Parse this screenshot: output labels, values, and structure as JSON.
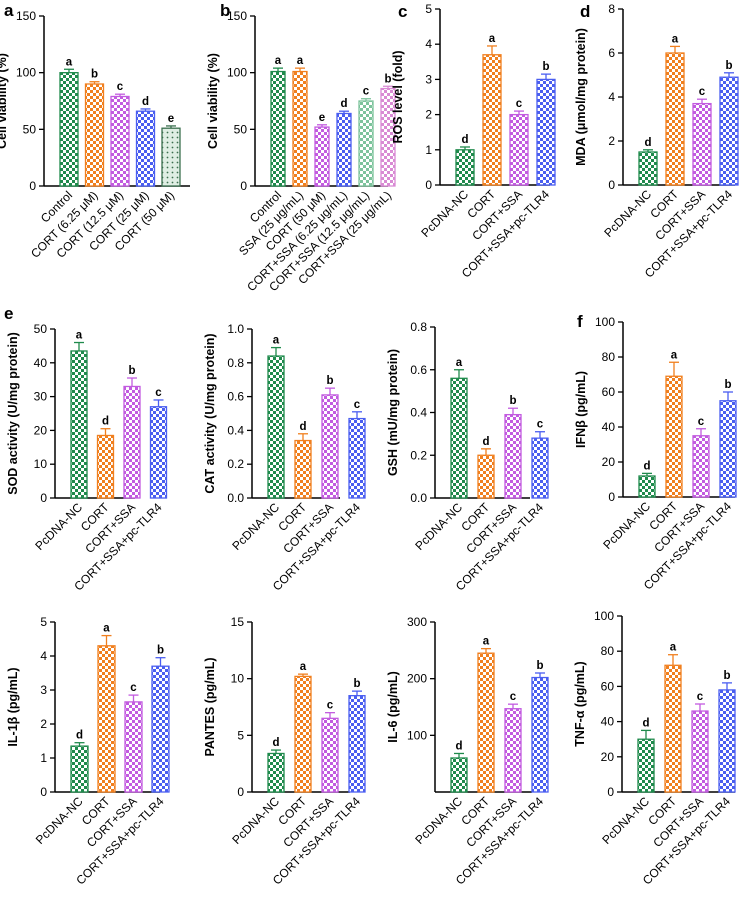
{
  "colors": {
    "green": "#1f8a4c",
    "orange": "#f07f1e",
    "purple": "#c25be0",
    "blue": "#4a5ef0",
    "lightgreen": "#7dc39c",
    "pink": "#d98ad4",
    "darkgreen": "#3b6f4f"
  },
  "chart_data": [
    {
      "id": "a",
      "panel_label": "a",
      "type": "bar",
      "ylabel": "Cell viability (%)",
      "ylim": [
        0,
        150
      ],
      "yticks": [
        0,
        50,
        100,
        150
      ],
      "categories": [
        "Control",
        "CORT (6.25 μM)",
        "CORT (12.5 μM)",
        "CORT (25 μM)",
        "CORT (50 μM)"
      ],
      "values": [
        100,
        90,
        79,
        66,
        51
      ],
      "errors": [
        3,
        2,
        2,
        2,
        2
      ],
      "letters": [
        "a",
        "b",
        "c",
        "d",
        "e"
      ],
      "bar_colors": [
        "green",
        "orange",
        "purple",
        "blue",
        "darkgreen"
      ],
      "patterns": [
        "check",
        "check",
        "check",
        "check",
        "dots"
      ]
    },
    {
      "id": "b",
      "panel_label": "b",
      "type": "bar",
      "ylabel": "Cell viability (%)",
      "ylim": [
        0,
        150
      ],
      "yticks": [
        0,
        50,
        100,
        150
      ],
      "categories": [
        "Control",
        "SSA (25 μg/mL)",
        "CORT (50 μM)",
        "CORT+SSA (6.25 μg/mL)",
        "CORT+SSA (12.5 μg/mL)",
        "CORT+SSA (25 μg/mL)"
      ],
      "values": [
        101,
        101,
        52,
        64,
        75,
        86
      ],
      "errors": [
        3,
        3,
        2,
        2,
        2,
        2
      ],
      "letters": [
        "a",
        "a",
        "e",
        "d",
        "c",
        "b"
      ],
      "bar_colors": [
        "green",
        "orange",
        "purple",
        "blue",
        "lightgreen",
        "pink"
      ],
      "patterns": [
        "check",
        "check",
        "check",
        "check",
        "check",
        "check"
      ]
    },
    {
      "id": "c",
      "panel_label": "c",
      "type": "bar",
      "ylabel": "ROS level (fold)",
      "ylim": [
        0,
        5
      ],
      "yticks": [
        0,
        1,
        2,
        3,
        4,
        5
      ],
      "categories": [
        "PcDNA-NC",
        "CORT",
        "CORT+SSA",
        "CORT+SSA+pc-TLR4"
      ],
      "values": [
        1.0,
        3.7,
        2.0,
        3.0
      ],
      "errors": [
        0.08,
        0.25,
        0.1,
        0.15
      ],
      "letters": [
        "d",
        "a",
        "c",
        "b"
      ],
      "bar_colors": [
        "green",
        "orange",
        "purple",
        "blue"
      ],
      "patterns": [
        "check",
        "check",
        "check",
        "check"
      ]
    },
    {
      "id": "d",
      "panel_label": "d",
      "type": "bar",
      "ylabel": "MDA (μmol/mg protein)",
      "ylim": [
        0,
        8
      ],
      "yticks": [
        0,
        2,
        4,
        6,
        8
      ],
      "categories": [
        "PcDNA-NC",
        "CORT",
        "CORT+SSA",
        "CORT+SSA+pc-TLR4"
      ],
      "values": [
        1.5,
        6.0,
        3.7,
        4.9
      ],
      "errors": [
        0.1,
        0.3,
        0.2,
        0.2
      ],
      "letters": [
        "d",
        "a",
        "c",
        "b"
      ],
      "bar_colors": [
        "green",
        "orange",
        "purple",
        "blue"
      ],
      "patterns": [
        "check",
        "check",
        "check",
        "check"
      ]
    },
    {
      "id": "e_sod",
      "panel_label": "e",
      "type": "bar",
      "ylabel": "SOD activity (U/mg protein)",
      "ylim": [
        0,
        50
      ],
      "yticks": [
        0,
        10,
        20,
        30,
        40,
        50
      ],
      "categories": [
        "PcDNA-NC",
        "CORT",
        "CORT+SSA",
        "CORT+SSA+pc-TLR4"
      ],
      "values": [
        43.5,
        18.5,
        33,
        27
      ],
      "errors": [
        2.5,
        2,
        2.5,
        2
      ],
      "letters": [
        "a",
        "d",
        "b",
        "c"
      ],
      "bar_colors": [
        "green",
        "orange",
        "purple",
        "blue"
      ],
      "patterns": [
        "check",
        "check",
        "check",
        "check"
      ]
    },
    {
      "id": "e_cat",
      "panel_label": "",
      "type": "bar",
      "ylabel": "CAT activity (U/mg protein)",
      "ylim": [
        0,
        1.0
      ],
      "yticks": [
        0.0,
        0.2,
        0.4,
        0.6,
        0.8,
        1.0
      ],
      "categories": [
        "PcDNA-NC",
        "CORT",
        "CORT+SSA",
        "CORT+SSA+pc-TLR4"
      ],
      "values": [
        0.84,
        0.34,
        0.61,
        0.47
      ],
      "errors": [
        0.05,
        0.04,
        0.04,
        0.04
      ],
      "letters": [
        "a",
        "d",
        "b",
        "c"
      ],
      "bar_colors": [
        "green",
        "orange",
        "purple",
        "blue"
      ],
      "patterns": [
        "check",
        "check",
        "check",
        "check"
      ]
    },
    {
      "id": "e_gsh",
      "panel_label": "",
      "type": "bar",
      "ylabel": "GSH (mU/mg protein)",
      "ylim": [
        0,
        0.8
      ],
      "yticks": [
        0.0,
        0.2,
        0.4,
        0.6,
        0.8
      ],
      "categories": [
        "PcDNA-NC",
        "CORT",
        "CORT+SSA",
        "CORT+SSA+pc-TLR4"
      ],
      "values": [
        0.56,
        0.2,
        0.39,
        0.28
      ],
      "errors": [
        0.04,
        0.03,
        0.03,
        0.03
      ],
      "letters": [
        "a",
        "d",
        "b",
        "c"
      ],
      "bar_colors": [
        "green",
        "orange",
        "purple",
        "blue"
      ],
      "patterns": [
        "check",
        "check",
        "check",
        "check"
      ]
    },
    {
      "id": "f_ifn",
      "panel_label": "f",
      "type": "bar",
      "ylabel": "IFNβ (pg/mL)",
      "ylim": [
        0,
        100
      ],
      "yticks": [
        0,
        20,
        40,
        60,
        80,
        100
      ],
      "categories": [
        "PcDNA-NC",
        "CORT",
        "CORT+SSA",
        "CORT+SSA+pc-TLR4"
      ],
      "values": [
        12,
        69,
        35,
        55
      ],
      "errors": [
        1.5,
        8,
        4,
        5
      ],
      "letters": [
        "d",
        "a",
        "c",
        "b"
      ],
      "bar_colors": [
        "green",
        "orange",
        "purple",
        "blue"
      ],
      "patterns": [
        "check",
        "check",
        "check",
        "check"
      ]
    },
    {
      "id": "g_il1",
      "panel_label": "",
      "type": "bar",
      "ylabel": "IL-1β (pg/mL)",
      "ylim": [
        0,
        5
      ],
      "yticks": [
        0,
        1,
        2,
        3,
        4,
        5
      ],
      "categories": [
        "PcDNA-NC",
        "CORT",
        "CORT+SSA",
        "CORT+SSA+pc-TLR4"
      ],
      "values": [
        1.35,
        4.3,
        2.65,
        3.7
      ],
      "errors": [
        0.1,
        0.3,
        0.2,
        0.25
      ],
      "letters": [
        "d",
        "a",
        "c",
        "b"
      ],
      "bar_colors": [
        "green",
        "orange",
        "purple",
        "blue"
      ],
      "patterns": [
        "check",
        "check",
        "check",
        "check"
      ]
    },
    {
      "id": "g_rantes",
      "panel_label": "",
      "type": "bar",
      "ylabel": "PANTES (pg/mL)",
      "ylim": [
        0,
        15
      ],
      "yticks": [
        0,
        5,
        10,
        15
      ],
      "categories": [
        "PcDNA-NC",
        "CORT",
        "CORT+SSA",
        "CORT+SSA+pc-TLR4"
      ],
      "values": [
        3.4,
        10.2,
        6.5,
        8.5
      ],
      "errors": [
        0.3,
        0.2,
        0.5,
        0.4
      ],
      "letters": [
        "d",
        "a",
        "c",
        "b"
      ],
      "bar_colors": [
        "green",
        "orange",
        "purple",
        "blue"
      ],
      "patterns": [
        "check",
        "check",
        "check",
        "check"
      ]
    },
    {
      "id": "g_il6",
      "panel_label": "",
      "type": "bar",
      "ylabel": "IL-6 (pg/mL)",
      "ylim": [
        0,
        300
      ],
      "yticks": [
        100,
        200,
        300
      ],
      "categories": [
        "PcDNA-NC",
        "CORT",
        "CORT+SSA",
        "CORT+SSA+pc-TLR4"
      ],
      "values": [
        60,
        245,
        147,
        202
      ],
      "errors": [
        8,
        8,
        8,
        8
      ],
      "letters": [
        "d",
        "a",
        "c",
        "b"
      ],
      "bar_colors": [
        "green",
        "orange",
        "purple",
        "blue"
      ],
      "patterns": [
        "check",
        "check",
        "check",
        "check"
      ]
    },
    {
      "id": "g_tnf",
      "panel_label": "",
      "type": "bar",
      "ylabel": "TNF-α (pg/mL)",
      "ylim": [
        0,
        100
      ],
      "yticks": [
        0,
        20,
        40,
        60,
        80,
        100
      ],
      "categories": [
        "PcDNA-NC",
        "CORT",
        "CORT+SSA",
        "CORT+SSA+pc-TLR4"
      ],
      "values": [
        30,
        72,
        46,
        58
      ],
      "errors": [
        5,
        6,
        4,
        4
      ],
      "letters": [
        "d",
        "a",
        "c",
        "b"
      ],
      "bar_colors": [
        "green",
        "orange",
        "purple",
        "blue"
      ],
      "patterns": [
        "check",
        "check",
        "check",
        "check"
      ]
    }
  ]
}
